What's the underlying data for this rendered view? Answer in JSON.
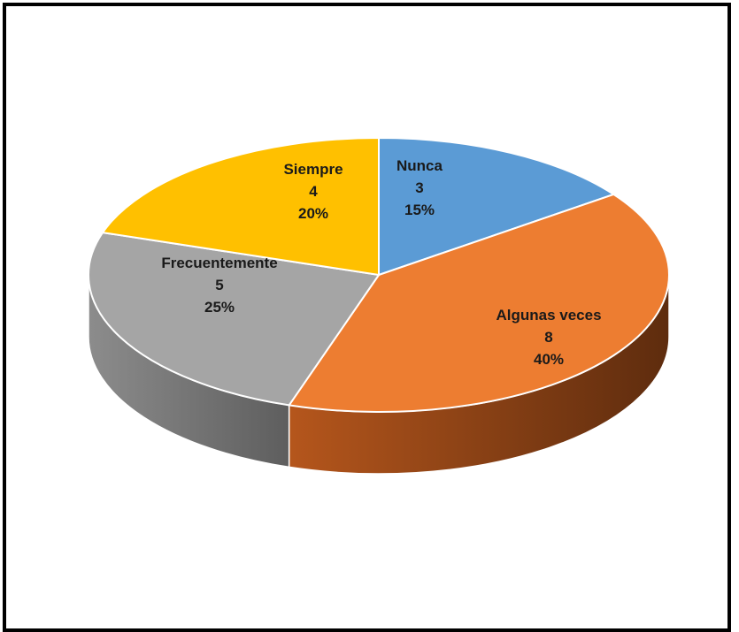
{
  "chart_data": {
    "type": "pie",
    "style": "3d",
    "title": "",
    "slices": [
      {
        "label": "Nunca",
        "value": 3,
        "percent": "15%",
        "color": "#5B9BD5",
        "side_color": "#2E5C8A"
      },
      {
        "label": "Algunas veces",
        "value": 8,
        "percent": "40%",
        "color": "#ED7D31",
        "side_color": "#7A3A12"
      },
      {
        "label": "Frecuentemente",
        "value": 5,
        "percent": "25%",
        "color": "#A5A5A5",
        "side_color": "#6E6E6E"
      },
      {
        "label": "Siempre",
        "value": 4,
        "percent": "20%",
        "color": "#FFC000",
        "side_color": "#A67C00"
      }
    ],
    "legend": "none",
    "data_labels": "inside"
  }
}
